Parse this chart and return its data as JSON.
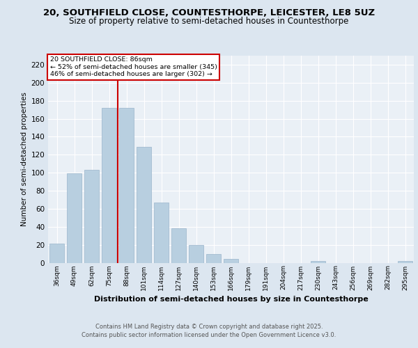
{
  "title_line1": "20, SOUTHFIELD CLOSE, COUNTESTHORPE, LEICESTER, LE8 5UZ",
  "title_line2": "Size of property relative to semi-detached houses in Countesthorpe",
  "categories": [
    "36sqm",
    "49sqm",
    "62sqm",
    "75sqm",
    "88sqm",
    "101sqm",
    "114sqm",
    "127sqm",
    "140sqm",
    "153sqm",
    "166sqm",
    "179sqm",
    "191sqm",
    "204sqm",
    "217sqm",
    "230sqm",
    "243sqm",
    "256sqm",
    "269sqm",
    "282sqm",
    "295sqm"
  ],
  "values": [
    21,
    99,
    103,
    172,
    172,
    129,
    67,
    38,
    20,
    10,
    4,
    0,
    0,
    0,
    0,
    2,
    0,
    0,
    0,
    0,
    2
  ],
  "bar_color": "#b8cfe0",
  "bar_edge_color": "#9ab5cb",
  "property_line_index": 4,
  "annotation_text_line1": "20 SOUTHFIELD CLOSE: 86sqm",
  "annotation_text_line2": "← 52% of semi-detached houses are smaller (345)",
  "annotation_text_line3": "46% of semi-detached houses are larger (302) →",
  "xlabel": "Distribution of semi-detached houses by size in Countesthorpe",
  "ylabel": "Number of semi-detached properties",
  "ylim": [
    0,
    230
  ],
  "yticks": [
    0,
    20,
    40,
    60,
    80,
    100,
    120,
    140,
    160,
    180,
    200,
    220
  ],
  "footer_line1": "Contains HM Land Registry data © Crown copyright and database right 2025.",
  "footer_line2": "Contains public sector information licensed under the Open Government Licence v3.0.",
  "bg_color": "#dce6f0",
  "plot_bg_color": "#eaf0f6",
  "grid_color": "#ffffff",
  "title_fontsize": 9.5,
  "subtitle_fontsize": 8.5,
  "annotation_box_color": "#cc0000",
  "red_line_color": "#cc0000"
}
